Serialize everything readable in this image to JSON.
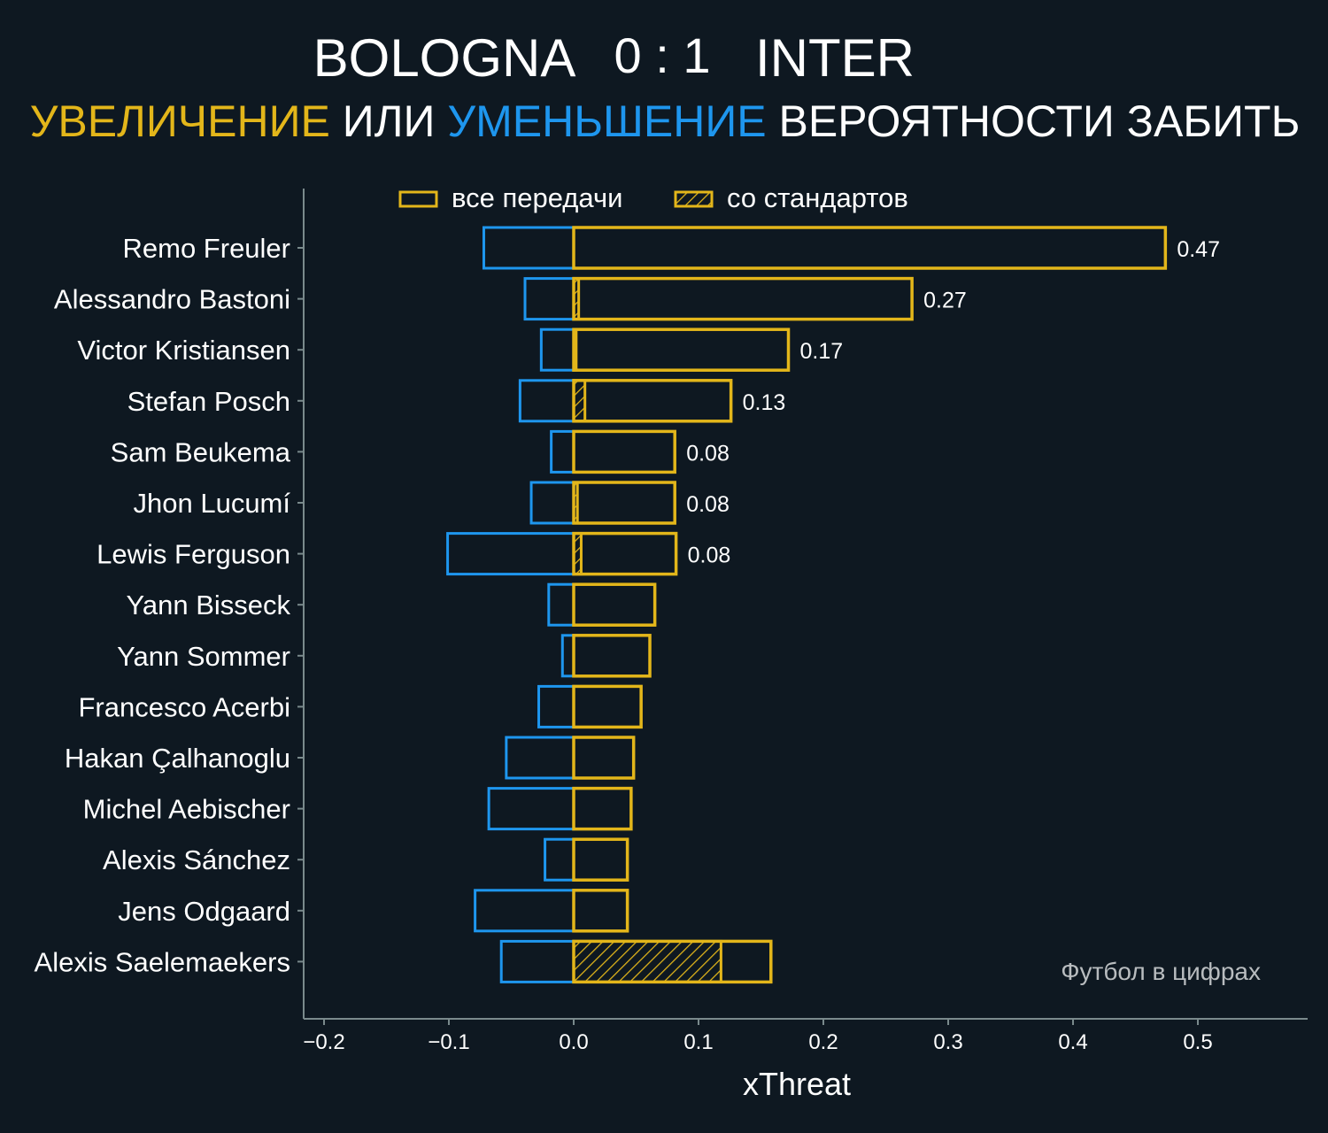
{
  "title": {
    "home": "BOLOGNA",
    "score": "0 : 1",
    "away": "INTER"
  },
  "subtitle": {
    "part1": "УВЕЛИЧЕНИЕ",
    "part2": " ИЛИ ",
    "part3": "УМЕНЬШЕНИЕ",
    "part4": " ВЕРОЯТНОСТИ ЗАБИТЬ"
  },
  "watermark": "Футбол в цифрах",
  "colors": {
    "background": "#0e1821",
    "increase": "#e3b61a",
    "decrease": "#1e96ee",
    "axis": "#7a8a8c",
    "text": "#ffffff"
  },
  "chart_data": {
    "type": "bar",
    "orientation": "horizontal",
    "xlabel": "xThreat",
    "xlim": [
      -0.216,
      0.588
    ],
    "xticks": [
      -0.2,
      -0.1,
      0.0,
      0.1,
      0.2,
      0.3,
      0.4,
      0.5
    ],
    "xtick_labels": [
      "−0.2",
      "−0.1",
      "0.0",
      "0.1",
      "0.2",
      "0.3",
      "0.4",
      "0.5"
    ],
    "legend": {
      "placement": "top",
      "entries": [
        "все передачи",
        "со стандартов"
      ]
    },
    "grid": false,
    "categories": [
      "Remo Freuler",
      "Alessandro Bastoni",
      "Victor Kristiansen",
      "Stefan Posch",
      "Sam Beukema",
      "Jhon Lucumí",
      "Lewis Ferguson",
      "Yann Bisseck",
      "Yann Sommer",
      "Francesco Acerbi",
      "Hakan Çalhanoglu",
      "Michel Aebischer",
      "Alexis Sánchez",
      "Jens Odgaard",
      "Alexis Saelemaekers"
    ],
    "series": [
      {
        "name": "все передачи",
        "role": "increase",
        "values": [
          0.474,
          0.271,
          0.172,
          0.126,
          0.081,
          0.081,
          0.082,
          0.065,
          0.061,
          0.054,
          0.048,
          0.046,
          0.043,
          0.043,
          0.158
        ]
      },
      {
        "name": "со стандартов",
        "role": "set-piece increase",
        "values": [
          0,
          0.004,
          0.002,
          0.009,
          0,
          0.003,
          0.006,
          0,
          0,
          0,
          0,
          0,
          0,
          0,
          0.118
        ]
      },
      {
        "role": "decrease",
        "values": [
          -0.072,
          -0.039,
          -0.026,
          -0.043,
          -0.018,
          -0.034,
          -0.101,
          -0.02,
          -0.009,
          -0.028,
          -0.054,
          -0.068,
          -0.023,
          -0.079,
          -0.058
        ]
      }
    ],
    "data_labels": [
      "0.47",
      "0.27",
      "0.17",
      "0.13",
      "0.08",
      "0.08",
      "0.08",
      "",
      "",
      "",
      "",
      "",
      "",
      "",
      ""
    ]
  }
}
